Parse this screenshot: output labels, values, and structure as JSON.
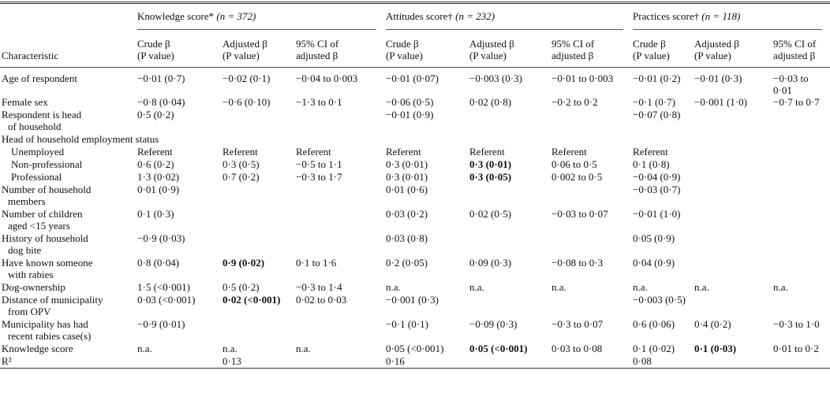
{
  "table": {
    "stub_header": "Characteristic",
    "groups": [
      {
        "label": "Knowledge score*",
        "n": "(n = 372)"
      },
      {
        "label": "Attitudes score†",
        "n": "(n = 232)"
      },
      {
        "label": "Practices score†",
        "n": "(n = 118)"
      }
    ],
    "subheaders": [
      [
        "Crude β",
        "(P value)"
      ],
      [
        "Adjusted β",
        "(P value)"
      ],
      [
        "95% CI of",
        "adjusted β"
      ],
      [
        "Crude β",
        "(P value)"
      ],
      [
        "Adjusted β",
        "(P value)"
      ],
      [
        "95% CI of",
        "adjusted β"
      ],
      [
        "Crude β",
        "(P value)"
      ],
      [
        "Adjusted β",
        "(P value)"
      ],
      [
        "95% CI of",
        "adjusted β"
      ]
    ],
    "rows": [
      {
        "label": [
          "Age of respondent"
        ],
        "cells": [
          "−0·01 (0·7)",
          "−0·02 (0·1)",
          "−0·04 to 0·003",
          "−0·01 (0·07)",
          "−0·003 (0·3)",
          "−0·01 to 0·003",
          "−0·01 (0·2)",
          "−0·01 (0·3)",
          "−0·03 to 0·01"
        ]
      },
      {
        "label": [
          "Female sex"
        ],
        "cells": [
          "−0·8 (0·04)",
          "−0·6 (0·10)",
          "−1·3 to 0·1",
          "−0·06 (0·5)",
          "0·02 (0·8)",
          "−0·2 to 0·2",
          "−0·1 (0·7)",
          "−0·001 (1·0)",
          "−0·7 to 0·7"
        ]
      },
      {
        "label": [
          "Respondent is head",
          "of household"
        ],
        "cells": [
          "0·5 (0·2)",
          null,
          null,
          "−0·01 (0·9)",
          null,
          null,
          "−0·07 (0·8)",
          null,
          null
        ]
      },
      {
        "label": [
          "Head of household employment status"
        ]
      },
      {
        "label": [
          "Unemployed"
        ],
        "indent": true,
        "cells": [
          "Referent",
          "Referent",
          "Referent",
          "Referent",
          "Referent",
          "Referent",
          "Referent",
          null,
          null
        ]
      },
      {
        "label": [
          "Non-professional"
        ],
        "indent": true,
        "cells": [
          "0·6 (0·2)",
          "0·3 (0·5)",
          "−0·5 to 1·1",
          "0·3 (0·01)",
          {
            "text": "0·3 (0·01)",
            "bold": true
          },
          "0·06 to 0·5",
          "0·1 (0·8)",
          null,
          null
        ]
      },
      {
        "label": [
          "Professional"
        ],
        "indent": true,
        "cells": [
          "1·3 (0·02)",
          "0·7 (0·2)",
          "−0·3 to 1·7",
          "0·3 (0·01)",
          {
            "text": "0·3 (0·05)",
            "bold": true
          },
          "0·002 to 0·5",
          "−0·04 (0·9)",
          null,
          null
        ]
      },
      {
        "label": [
          "Number of household",
          "members"
        ],
        "cells": [
          "0·01 (0·9)",
          null,
          null,
          "0·01 (0·6)",
          null,
          null,
          "−0·03 (0·7)",
          null,
          null
        ]
      },
      {
        "label": [
          "Number of children",
          "aged <15 years"
        ],
        "cells": [
          "0·1 (0·3)",
          null,
          null,
          "0·03 (0·2)",
          "0·02 (0·5)",
          "−0·03 to 0·07",
          "−0·01 (1·0)",
          null,
          null
        ]
      },
      {
        "label": [
          "History of household",
          "dog bite"
        ],
        "cells": [
          "−0·9 (0·03)",
          null,
          null,
          "0·03 (0·8)",
          null,
          null,
          "0·05 (0·9)",
          null,
          null
        ]
      },
      {
        "label": [
          "Have known someone",
          "with rabies"
        ],
        "cells": [
          "0·8 (0·04)",
          {
            "text": "0·9 (0·02)",
            "bold": true
          },
          "0·1 to 1·6",
          "0·2 (0·05)",
          "0·09 (0·3)",
          "−0·08 to 0·3",
          "0·04 (0·9)",
          null,
          null
        ]
      },
      {
        "label": [
          "Dog-ownership"
        ],
        "cells": [
          "1·5 (<0·001)",
          "0·5 (0·2)",
          "−0·3 to 1·4",
          "n.a.",
          "n.a.",
          "n.a.",
          "n.a.",
          "n.a.",
          "n.a."
        ]
      },
      {
        "label": [
          "Distance of municipality",
          "from OPV"
        ],
        "cells": [
          "0·03 (<0·001)",
          {
            "text": "0·02 (<0·001)",
            "bold": true
          },
          "0·02 to 0·03",
          "−0·001 (0·3)",
          null,
          null,
          "−0·003 (0·5)",
          null,
          null
        ]
      },
      {
        "label": [
          "Municipality has had",
          "recent rabies case(s)"
        ],
        "cells": [
          "−0·9 (0·01)",
          null,
          null,
          "−0·1 (0·1)",
          "−0·09 (0·3)",
          "−0·3 to 0·07",
          "0·6 (0·06)",
          "0·4 (0·2)",
          "−0·3 to 1·0"
        ]
      },
      {
        "label": [
          "Knowledge score"
        ],
        "cells": [
          "n.a.",
          "n.a.",
          "n.a.",
          "0·05 (<0·001)",
          {
            "text": "0·05 (<0·001)",
            "bold": true
          },
          "0·03 to 0·08",
          "0·1 (0·02)",
          {
            "text": "0·1 (0·03)",
            "bold": true
          },
          "0·01 to 0·2"
        ]
      },
      {
        "label": [
          "R²"
        ],
        "cells": [
          null,
          "0·13",
          null,
          "0·16",
          null,
          null,
          "0·08",
          null,
          null
        ]
      }
    ]
  }
}
